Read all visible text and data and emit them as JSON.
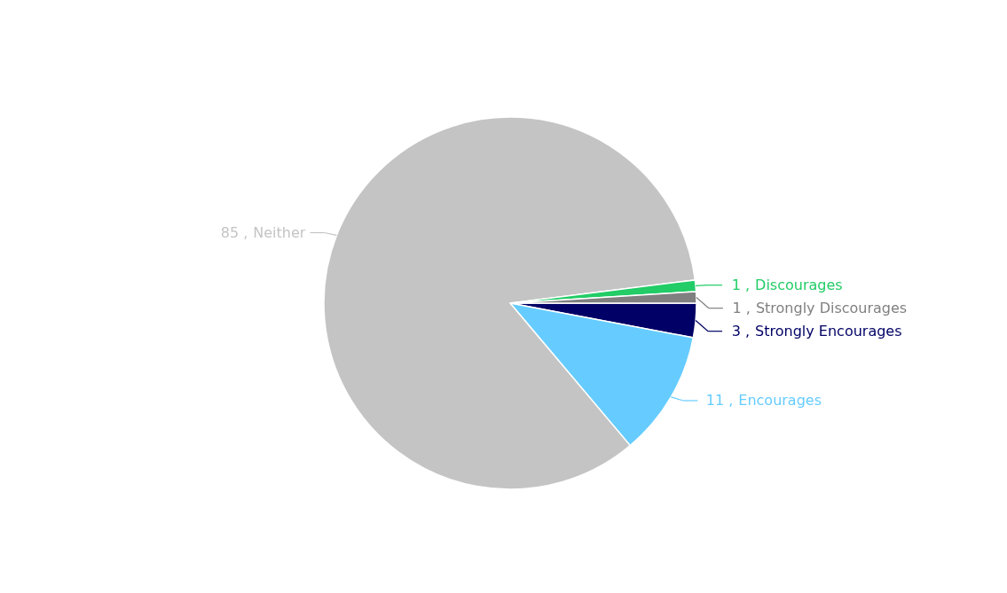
{
  "chart_data": {
    "type": "pie",
    "categories": [
      "Strongly Encourages",
      "Encourages",
      "Neither",
      "Discourages",
      "Strongly Discourages"
    ],
    "values": [
      3,
      11,
      85,
      1,
      1
    ],
    "value_labels": [
      "3 ,",
      "11 ,",
      "85 ,",
      "1 ,",
      "1 ,"
    ],
    "colors": [
      "#000066",
      "#66ccff",
      "#c4c4c4",
      "#22cc66",
      "#808080"
    ]
  }
}
